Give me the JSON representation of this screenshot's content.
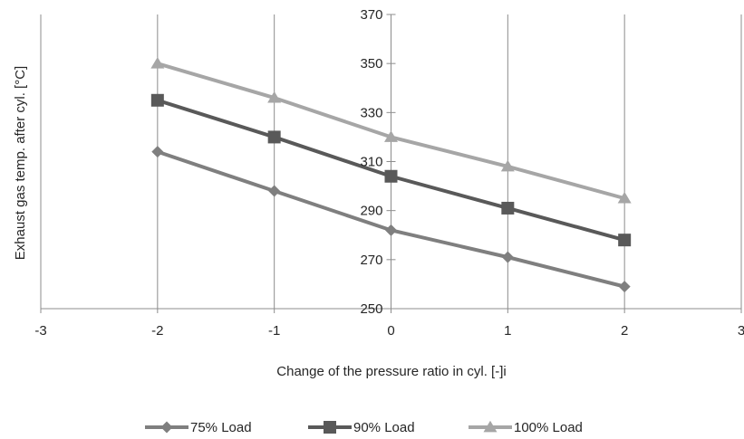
{
  "chart_data": {
    "type": "line",
    "title": "",
    "xlabel": "Change of the pressure ratio in cyl. [-]i",
    "ylabel": "Exhaust gas temp. after  cyl. [°C]",
    "xlim": [
      -3,
      3
    ],
    "ylim": [
      250,
      370
    ],
    "xticks": [
      -3,
      -2,
      -1,
      0,
      1,
      2,
      3
    ],
    "yticks": [
      250,
      270,
      290,
      310,
      330,
      350,
      370
    ],
    "grid": "vertical",
    "legend_position": "bottom",
    "x": [
      -2,
      -1,
      0,
      1,
      2
    ],
    "series": [
      {
        "name": "75% Load",
        "values": [
          314,
          298,
          282,
          271,
          259
        ],
        "marker": "diamond",
        "color": "#7f7f7f"
      },
      {
        "name": "90% Load",
        "values": [
          335,
          320,
          304,
          291,
          278
        ],
        "marker": "square",
        "color": "#595959"
      },
      {
        "name": "100% Load",
        "values": [
          350,
          336,
          320,
          308,
          295
        ],
        "marker": "triangle",
        "color": "#a6a6a6"
      }
    ]
  }
}
